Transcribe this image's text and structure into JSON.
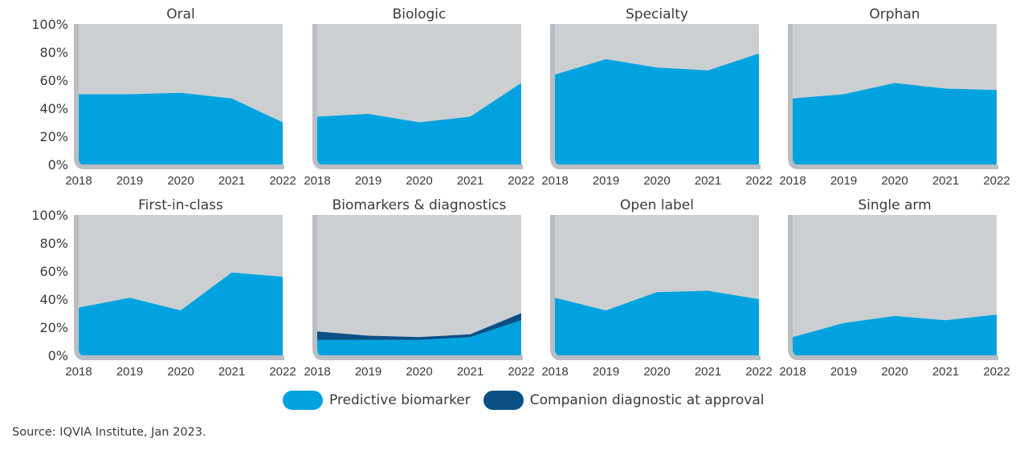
{
  "colors": {
    "background_area": "#cbcfd2",
    "axis_frame": "#b9bec2",
    "predictive_biomarker": "#00a3e0",
    "companion_diagnostic": "#0a4f86"
  },
  "legend": {
    "items": [
      {
        "key": "predictive_biomarker",
        "label": "Predictive biomarker"
      },
      {
        "key": "companion_diagnostic",
        "label": "Companion diagnostic at approval"
      }
    ]
  },
  "source": "Source: IQVIA Institute, Jan 2023.",
  "chart_data": [
    {
      "type": "area",
      "title": "Oral",
      "categories": [
        "2018",
        "2019",
        "2020",
        "2021",
        "2022"
      ],
      "ylim": [
        0,
        100
      ],
      "yticks": [
        "0%",
        "20%",
        "40%",
        "60%",
        "80%",
        "100%"
      ],
      "series": [
        {
          "name": "Predictive biomarker",
          "values": [
            50,
            50,
            51,
            47,
            30
          ]
        }
      ]
    },
    {
      "type": "area",
      "title": "Biologic",
      "categories": [
        "2018",
        "2019",
        "2020",
        "2021",
        "2022"
      ],
      "ylim": [
        0,
        100
      ],
      "yticks": [
        "0%",
        "20%",
        "40%",
        "60%",
        "80%",
        "100%"
      ],
      "series": [
        {
          "name": "Predictive biomarker",
          "values": [
            34,
            36,
            30,
            34,
            58
          ]
        }
      ]
    },
    {
      "type": "area",
      "title": "Specialty",
      "categories": [
        "2018",
        "2019",
        "2020",
        "2021",
        "2022"
      ],
      "ylim": [
        0,
        100
      ],
      "yticks": [
        "0%",
        "20%",
        "40%",
        "60%",
        "80%",
        "100%"
      ],
      "series": [
        {
          "name": "Predictive biomarker",
          "values": [
            64,
            75,
            69,
            67,
            79
          ]
        }
      ]
    },
    {
      "type": "area",
      "title": "Orphan",
      "categories": [
        "2018",
        "2019",
        "2020",
        "2021",
        "2022"
      ],
      "ylim": [
        0,
        100
      ],
      "yticks": [
        "0%",
        "20%",
        "40%",
        "60%",
        "80%",
        "100%"
      ],
      "series": [
        {
          "name": "Predictive biomarker",
          "values": [
            47,
            50,
            58,
            54,
            53
          ]
        }
      ]
    },
    {
      "type": "area",
      "title": "First-in-class",
      "categories": [
        "2018",
        "2019",
        "2020",
        "2021",
        "2022"
      ],
      "ylim": [
        0,
        100
      ],
      "yticks": [
        "0%",
        "20%",
        "40%",
        "60%",
        "80%",
        "100%"
      ],
      "series": [
        {
          "name": "Predictive biomarker",
          "values": [
            34,
            41,
            32,
            59,
            56
          ]
        }
      ]
    },
    {
      "type": "area",
      "title": "Biomarkers & diagnostics",
      "categories": [
        "2018",
        "2019",
        "2020",
        "2021",
        "2022"
      ],
      "ylim": [
        0,
        100
      ],
      "yticks": [
        "0%",
        "20%",
        "40%",
        "60%",
        "80%",
        "100%"
      ],
      "series": [
        {
          "name": "Predictive biomarker",
          "values": [
            11,
            11,
            11,
            13,
            25
          ]
        },
        {
          "name": "Companion diagnostic at approval",
          "values": [
            6,
            3,
            2,
            2,
            5
          ]
        }
      ]
    },
    {
      "type": "area",
      "title": "Open label",
      "categories": [
        "2018",
        "2019",
        "2020",
        "2021",
        "2022"
      ],
      "ylim": [
        0,
        100
      ],
      "yticks": [
        "0%",
        "20%",
        "40%",
        "60%",
        "80%",
        "100%"
      ],
      "series": [
        {
          "name": "Predictive biomarker",
          "values": [
            41,
            32,
            45,
            46,
            40
          ]
        }
      ]
    },
    {
      "type": "area",
      "title": "Single arm",
      "categories": [
        "2018",
        "2019",
        "2020",
        "2021",
        "2022"
      ],
      "ylim": [
        0,
        100
      ],
      "yticks": [
        "0%",
        "20%",
        "40%",
        "60%",
        "80%",
        "100%"
      ],
      "series": [
        {
          "name": "Predictive biomarker",
          "values": [
            13,
            23,
            28,
            25,
            29
          ]
        }
      ]
    }
  ]
}
